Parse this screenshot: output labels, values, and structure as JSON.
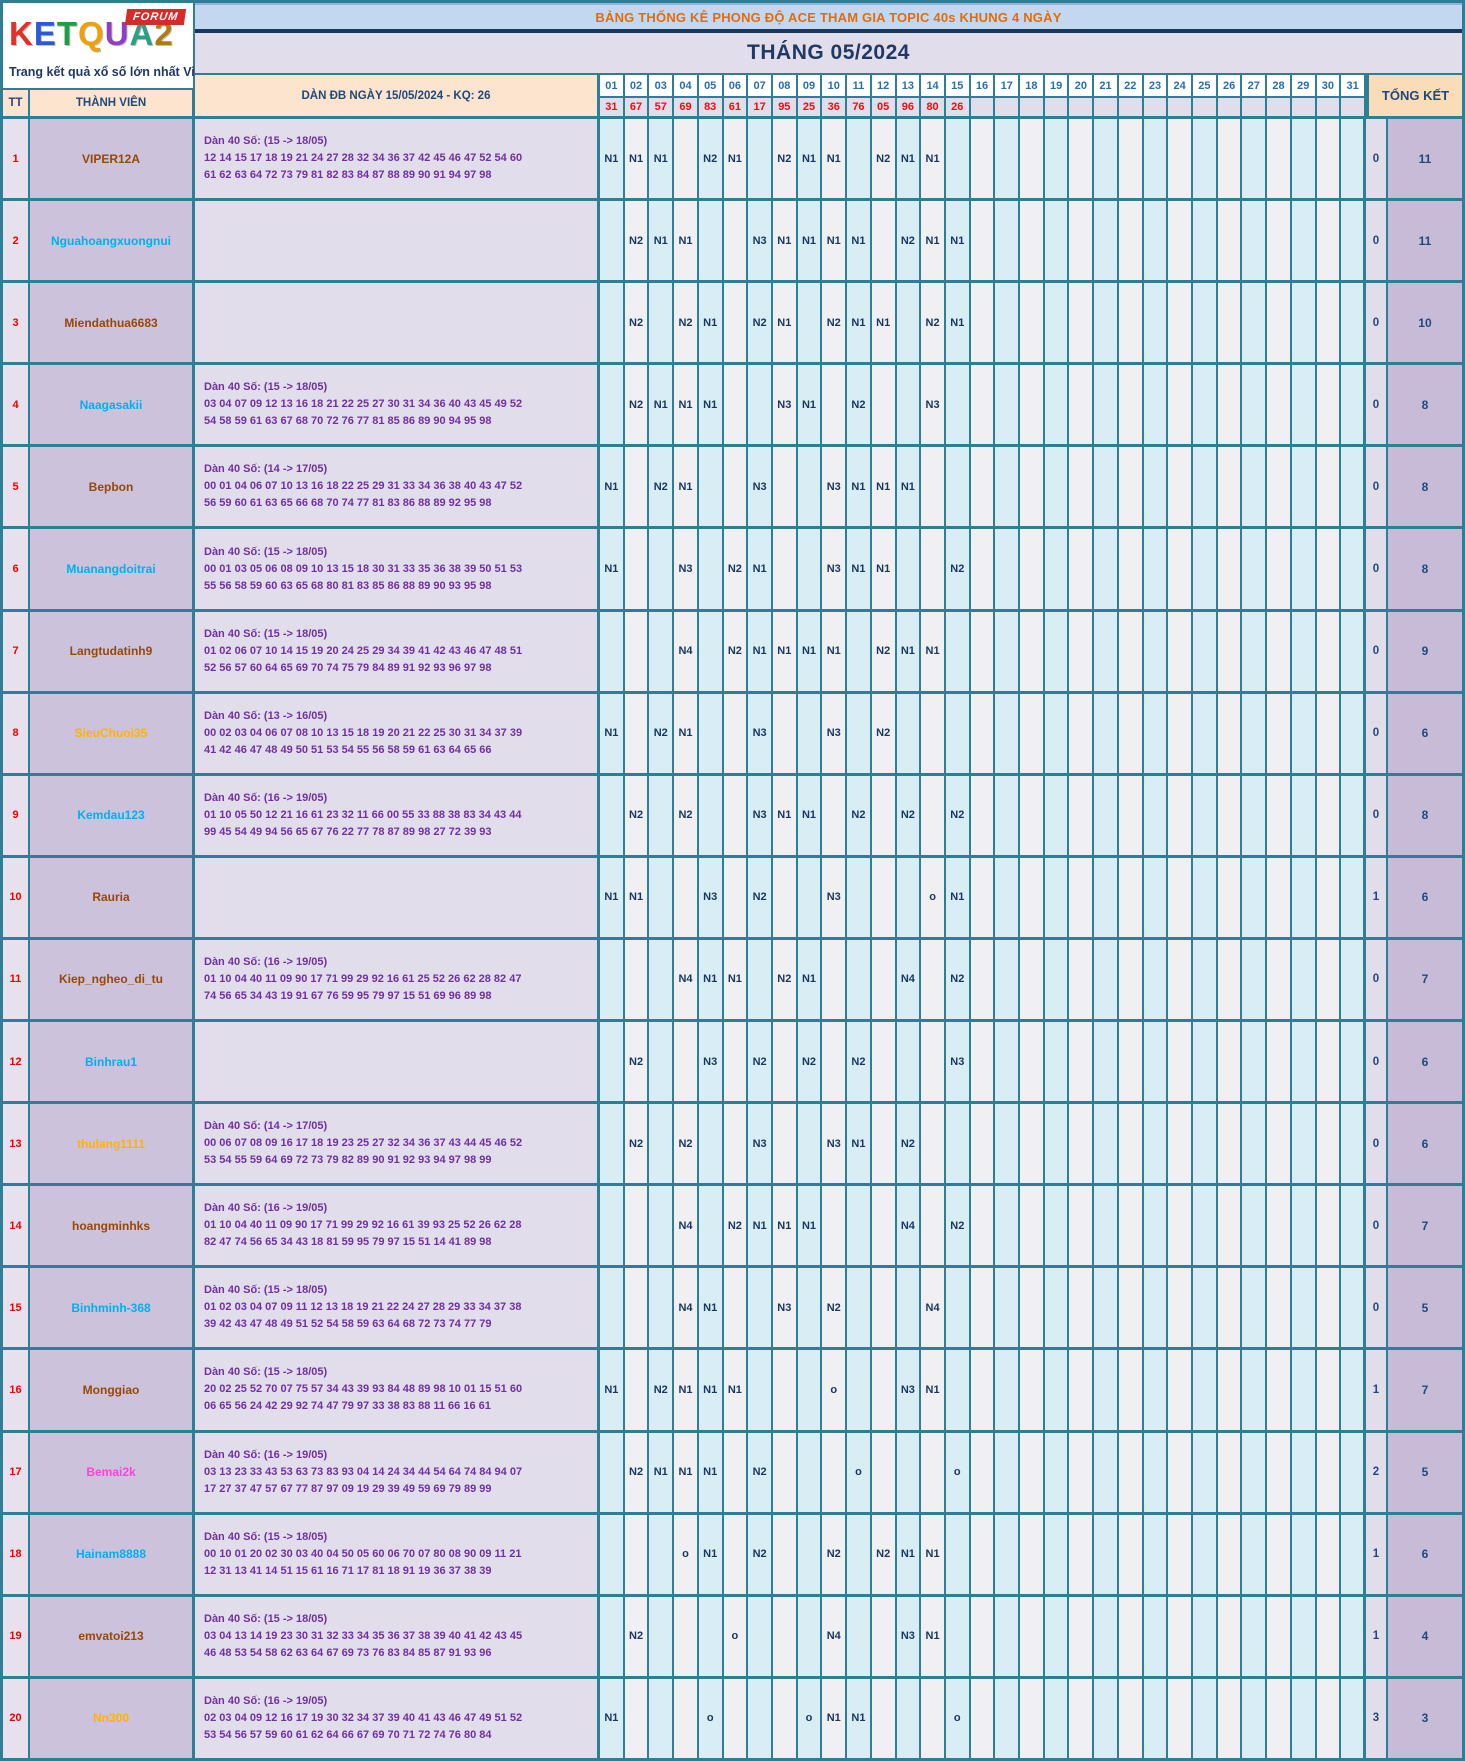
{
  "logo": {
    "brand_letters": [
      "K",
      "E",
      "T",
      "Q",
      "U",
      "A",
      "2"
    ],
    "brand_colors": [
      "#E03228",
      "#2B59D8",
      "#1F9E46",
      "#EFA00B",
      "#8F3FC0",
      "#2BA184",
      "#B07C10"
    ],
    "badge": "FORUM",
    "caption": "Trang kết quả xổ số lớn nhất Việt Nam"
  },
  "banner": "BẢNG THỐNG KÊ PHONG ĐỘ ACE THAM GIA TOPIC 40s KHUNG 4 NGÀY",
  "title": "THÁNG 05/2024",
  "columns": {
    "tt": "TT",
    "member": "THÀNH VIÊN",
    "dan": "DÀN ĐB NGÀY 15/05/2024 - KQ: 26",
    "tongket": "TỔNG KẾT",
    "days": [
      "01",
      "02",
      "03",
      "04",
      "05",
      "06",
      "07",
      "08",
      "09",
      "10",
      "11",
      "12",
      "13",
      "14",
      "15",
      "16",
      "17",
      "18",
      "19",
      "20",
      "21",
      "22",
      "23",
      "24",
      "25",
      "26",
      "27",
      "28",
      "29",
      "30",
      "31"
    ]
  },
  "results_by_day": [
    "31",
    "67",
    "57",
    "69",
    "83",
    "61",
    "17",
    "95",
    "25",
    "36",
    "76",
    "05",
    "96",
    "80",
    "26",
    "",
    "",
    "",
    "",
    "",
    "",
    "",
    "",
    "",
    "",
    "",
    "",
    "",
    "",
    "",
    ""
  ],
  "colors": {
    "border_teal": "#2E7E95",
    "banner_text": "#E36C0A",
    "result_red": "#F40B0B",
    "mark_navy": "#17375E",
    "dan_purple": "#7030A0",
    "name_cyan": "#00B0F0",
    "name_brown": "#974806",
    "name_orange": "#FFB300",
    "name_magenta": "#FF40D9"
  },
  "rows": [
    {
      "tt": "1",
      "name": "VIPER12A",
      "name_color": "#974806",
      "dan_title": "Dàn 40 Số: (15 -> 18/05)",
      "dan_line1": "12 14 15 17 18 19 21 24 27 28 32 34 36 37 42 45 46 47 52 54 60",
      "dan_line2": "61 62 63 64 72 73 79 81 82 83 84 87 88 89 90 91 94 97 98",
      "marks": {
        "1": "N1",
        "2": "N1",
        "3": "N1",
        "5": "N2",
        "6": "N1",
        "8": "N2",
        "9": "N1",
        "10": "N1",
        "12": "N2",
        "13": "N1",
        "14": "N1"
      },
      "miss": "0",
      "total": "11"
    },
    {
      "tt": "2",
      "name": "Nguahoangxuongnui",
      "name_color": "#00B0F0",
      "dan_title": "",
      "dan_line1": "",
      "dan_line2": "",
      "marks": {
        "2": "N2",
        "3": "N1",
        "4": "N1",
        "7": "N3",
        "8": "N1",
        "9": "N1",
        "10": "N1",
        "11": "N1",
        "13": "N2",
        "14": "N1",
        "15": "N1"
      },
      "miss": "0",
      "total": "11"
    },
    {
      "tt": "3",
      "name": "Miendathua6683",
      "name_color": "#974806",
      "dan_title": "",
      "dan_line1": "",
      "dan_line2": "",
      "marks": {
        "2": "N2",
        "4": "N2",
        "5": "N1",
        "7": "N2",
        "8": "N1",
        "10": "N2",
        "11": "N1",
        "12": "N1",
        "14": "N2",
        "15": "N1"
      },
      "miss": "0",
      "total": "10"
    },
    {
      "tt": "4",
      "name": "Naagasakii",
      "name_color": "#00B0F0",
      "dan_title": "Dàn 40 Số: (15 -> 18/05)",
      "dan_line1": "03 04 07 09 12 13 16 18 21 22 25 27 30 31 34 36 40 43 45 49 52",
      "dan_line2": "54 58 59 61 63 67 68 70 72 76 77 81 85 86 89 90 94 95 98",
      "marks": {
        "2": "N2",
        "3": "N1",
        "4": "N1",
        "5": "N1",
        "8": "N3",
        "9": "N1",
        "11": "N2",
        "14": "N3"
      },
      "miss": "0",
      "total": "8"
    },
    {
      "tt": "5",
      "name": "Bepbon",
      "name_color": "#974806",
      "dan_title": "Dàn 40 Số: (14 -> 17/05)",
      "dan_line1": "00 01 04 06 07 10 13 16 18 22 25 29 31 33 34 36 38 40 43 47 52",
      "dan_line2": "56 59 60 61 63 65 66 68 70 74 77 81 83 86 88 89 92 95 98",
      "marks": {
        "1": "N1",
        "3": "N2",
        "4": "N1",
        "7": "N3",
        "10": "N3",
        "11": "N1",
        "12": "N1",
        "13": "N1"
      },
      "miss": "0",
      "total": "8"
    },
    {
      "tt": "6",
      "name": "Muanangdoitrai",
      "name_color": "#00B0F0",
      "dan_title": "Dàn 40 Số: (15 -> 18/05)",
      "dan_line1": "00 01 03 05 06 08 09 10 13 15 18 30 31 33 35 36 38 39 50 51 53",
      "dan_line2": "55 56 58 59 60 63 65 68 80 81 83 85 86 88 89 90 93 95 98",
      "marks": {
        "1": "N1",
        "4": "N3",
        "6": "N2",
        "7": "N1",
        "10": "N3",
        "11": "N1",
        "12": "N1",
        "15": "N2"
      },
      "miss": "0",
      "total": "8"
    },
    {
      "tt": "7",
      "name": "Langtudatinh9",
      "name_color": "#974806",
      "dan_title": "Dàn 40 Số: (15 -> 18/05)",
      "dan_line1": "01 02 06 07 10 14 15 19 20 24 25 29 34 39 41 42 43 46 47 48 51",
      "dan_line2": "52 56 57 60 64 65 69 70 74 75 79 84 89 91 92 93 96 97 98",
      "marks": {
        "4": "N4",
        "6": "N2",
        "7": "N1",
        "8": "N1",
        "9": "N1",
        "10": "N1",
        "12": "N2",
        "13": "N1",
        "14": "N1"
      },
      "miss": "0",
      "total": "9"
    },
    {
      "tt": "8",
      "name": "SieuChuoi35",
      "name_color": "#FFB300",
      "dan_title": "Dàn 40 Số: (13 -> 16/05)",
      "dan_line1": "00 02 03 04 06 07 08 10 13 15 18 19 20 21 22 25 30 31 34 37 39",
      "dan_line2": "41 42 46 47 48 49 50 51 53 54 55 56 58 59 61 63 64 65 66",
      "marks": {
        "1": "N1",
        "3": "N2",
        "4": "N1",
        "7": "N3",
        "10": "N3",
        "12": "N2"
      },
      "miss": "0",
      "total": "6"
    },
    {
      "tt": "9",
      "name": "Kemdau123",
      "name_color": "#00B0F0",
      "dan_title": "Dàn 40 Số: (16 -> 19/05)",
      "dan_line1": "01 10 05 50 12 21 16 61 23 32 11 66 00 55 33 88 38 83 34 43 44",
      "dan_line2": "99 45 54 49 94 56 65 67 76 22 77 78 87 89 98 27 72 39 93",
      "marks": {
        "2": "N2",
        "4": "N2",
        "7": "N3",
        "8": "N1",
        "9": "N1",
        "11": "N2",
        "13": "N2",
        "15": "N2"
      },
      "miss": "0",
      "total": "8"
    },
    {
      "tt": "10",
      "name": "Rauria",
      "name_color": "#974806",
      "dan_title": "",
      "dan_line1": "",
      "dan_line2": "",
      "marks": {
        "1": "N1",
        "2": "N1",
        "5": "N3",
        "7": "N2",
        "10": "N3",
        "14": "o",
        "15": "N1"
      },
      "miss": "1",
      "total": "6"
    },
    {
      "tt": "11",
      "name": "Kiep_ngheo_di_tu",
      "name_color": "#974806",
      "dan_title": "Dàn 40 Số: (16 -> 19/05)",
      "dan_line1": "01 10 04 40 11 09 90 17 71 99 29 92 16 61 25 52 26 62 28 82 47",
      "dan_line2": "74 56 65 34 43 19 91 67 76 59 95 79 97 15 51 69 96 89 98",
      "marks": {
        "4": "N4",
        "5": "N1",
        "6": "N1",
        "8": "N2",
        "9": "N1",
        "13": "N4",
        "15": "N2"
      },
      "miss": "0",
      "total": "7"
    },
    {
      "tt": "12",
      "name": "Binhrau1",
      "name_color": "#00B0F0",
      "dan_title": "",
      "dan_line1": "",
      "dan_line2": "",
      "marks": {
        "2": "N2",
        "5": "N3",
        "7": "N2",
        "9": "N2",
        "11": "N2",
        "15": "N3"
      },
      "miss": "0",
      "total": "6"
    },
    {
      "tt": "13",
      "name": "thulang1111",
      "name_color": "#FFB300",
      "dan_title": "Dàn 40 Số: (14 -> 17/05)",
      "dan_line1": "00 06 07 08 09 16 17 18 19 23 25 27 32 34 36 37 43 44 45 46 52",
      "dan_line2": "53 54 55 59 64 69 72 73 79 82 89 90 91 92 93 94 97 98 99",
      "marks": {
        "2": "N2",
        "4": "N2",
        "7": "N3",
        "10": "N3",
        "11": "N1",
        "13": "N2"
      },
      "miss": "0",
      "total": "6"
    },
    {
      "tt": "14",
      "name": "hoangminhks",
      "name_color": "#974806",
      "dan_title": "Dàn 40 Số: (16 -> 19/05)",
      "dan_line1": "01 10 04 40 11 09 90 17 71 99 29 92 16 61 39 93 25 52 26 62 28",
      "dan_line2": "82 47 74 56 65 34 43 18 81 59 95 79 97 15 51 14 41 89 98",
      "marks": {
        "4": "N4",
        "6": "N2",
        "7": "N1",
        "8": "N1",
        "9": "N1",
        "13": "N4",
        "15": "N2"
      },
      "miss": "0",
      "total": "7"
    },
    {
      "tt": "15",
      "name": "Binhminh-368",
      "name_color": "#00B0F0",
      "dan_title": "Dàn 40 Số: (15 -> 18/05)",
      "dan_line1": "01 02 03 04 07 09 11 12 13 18 19 21 22 24 27 28 29 33 34 37 38",
      "dan_line2": "39 42 43 47 48 49 51 52 54 58 59 63 64 68 72 73 74 77 79",
      "marks": {
        "4": "N4",
        "5": "N1",
        "8": "N3",
        "10": "N2",
        "14": "N4"
      },
      "miss": "0",
      "total": "5"
    },
    {
      "tt": "16",
      "name": "Monggiao",
      "name_color": "#974806",
      "dan_title": "Dàn 40 Số: (15 -> 18/05)",
      "dan_line1": "20 02 25 52 70 07 75 57 34 43 39 93 84 48 89 98 10 01 15 51 60",
      "dan_line2": "06 65 56 24 42 29 92 74 47 79 97 33 38 83 88 11 66 16 61",
      "marks": {
        "1": "N1",
        "3": "N2",
        "4": "N1",
        "5": "N1",
        "6": "N1",
        "10": "o",
        "13": "N3",
        "14": "N1"
      },
      "miss": "1",
      "total": "7"
    },
    {
      "tt": "17",
      "name": "Bemai2k",
      "name_color": "#FF40D9",
      "dan_title": "Dàn 40 Số: (16 -> 19/05)",
      "dan_line1": "03 13 23 33 43 53 63 73 83 93 04 14 24 34 44 54 64 74 84 94 07",
      "dan_line2": "17 27 37 47 57 67 77 87 97 09 19 29 39 49 59 69 79 89 99",
      "marks": {
        "2": "N2",
        "3": "N1",
        "4": "N1",
        "5": "N1",
        "7": "N2",
        "11": "o",
        "15": "o"
      },
      "miss": "2",
      "total": "5"
    },
    {
      "tt": "18",
      "name": "Hainam8888",
      "name_color": "#00B0F0",
      "dan_title": "Dàn 40 Số: (15 -> 18/05)",
      "dan_line1": "00 10 01 20 02 30 03 40 04 50 05 60 06 70 07 80 08 90 09 11 21",
      "dan_line2": "12 31 13 41 14 51 15 61 16 71 17 81 18 91 19 36 37 38 39",
      "marks": {
        "4": "o",
        "5": "N1",
        "7": "N2",
        "10": "N2",
        "12": "N2",
        "13": "N1",
        "14": "N1"
      },
      "miss": "1",
      "total": "6"
    },
    {
      "tt": "19",
      "name": "emvatoi213",
      "name_color": "#974806",
      "dan_title": "Dàn 40 Số: (15 -> 18/05)",
      "dan_line1": "03 04 13 14 19 23 30 31 32 33 34 35 36 37 38 39 40 41 42 43 45",
      "dan_line2": "46 48 53 54 58 62 63 64 67 69 73 76 83 84 85 87 91 93 96",
      "marks": {
        "2": "N2",
        "6": "o",
        "10": "N4",
        "13": "N3",
        "14": "N1"
      },
      "miss": "1",
      "total": "4"
    },
    {
      "tt": "20",
      "name": "Nn300",
      "name_color": "#FFB300",
      "dan_title": "Dàn 40 Số: (16 -> 19/05)",
      "dan_line1": "02 03 04 09 12 16 17 19 30 32 34 37 39 40 41 43 46 47 49 51 52",
      "dan_line2": "53 54 56 57 59 60 61 62 64 66 67 69 70 71 72 74 76 80 84",
      "marks": {
        "1": "N1",
        "5": "o",
        "9": "o",
        "10": "N1",
        "11": "N1",
        "15": "o"
      },
      "miss": "3",
      "total": "3"
    }
  ]
}
